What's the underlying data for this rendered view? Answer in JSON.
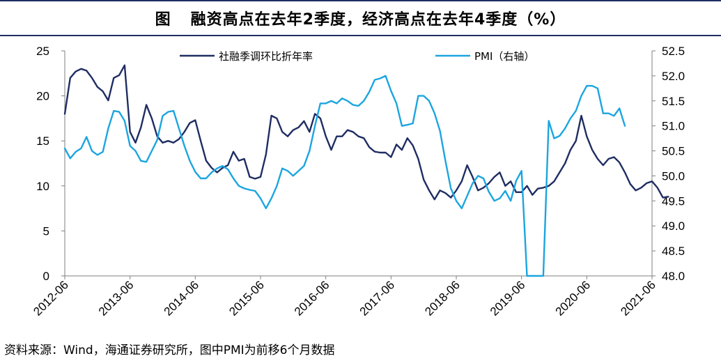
{
  "chart_data": {
    "type": "line",
    "title": "图 融资高点在去年2季度，经济高点在去年4季度（%）",
    "title_prefix": "图",
    "title_main": "融资高点在去年2季度，经济高点在去年4季度（%）",
    "source": "资料来源：Wind，海通证券研究所，图中PMI为前移6个月数据",
    "x_tick_labels": [
      "2012-06",
      "2013-06",
      "2014-06",
      "2015-06",
      "2016-06",
      "2017-06",
      "2018-06",
      "2019-06",
      "2020-06",
      "2021-06"
    ],
    "y_left_ticks": [
      "0",
      "5",
      "10",
      "15",
      "20",
      "25"
    ],
    "y_right_ticks": [
      "48.0",
      "48.5",
      "49.0",
      "49.5",
      "50.0",
      "50.5",
      "51.0",
      "51.5",
      "52.0",
      "52.5"
    ],
    "ylim_left": [
      0,
      25
    ],
    "ylim_right": [
      48.0,
      52.5
    ],
    "series": [
      {
        "name": "社融季调环比折年率",
        "axis": "left",
        "color": "#1f2d63",
        "start_month_index": 0,
        "values": [
          18,
          22,
          22.7,
          23,
          22.8,
          22,
          21,
          20.5,
          19.5,
          22,
          22.3,
          23.4,
          16,
          14.8,
          16.5,
          19,
          17.5,
          15.5,
          14.8,
          15,
          14.8,
          15.2,
          16,
          17,
          17.3,
          15,
          12.8,
          12,
          11.5,
          12,
          12.3,
          13.8,
          12.8,
          13,
          11,
          10.8,
          11,
          13.5,
          17.8,
          17.5,
          16,
          15.5,
          16.2,
          16.5,
          17.2,
          16,
          18,
          17.5,
          15.5,
          14,
          15.5,
          15.5,
          16.2,
          16,
          15.5,
          15.3,
          14.3,
          13.8,
          13.7,
          13.7,
          13.2,
          14.6,
          14,
          15.3,
          14.5,
          13,
          10.7,
          9.5,
          8.5,
          9.5,
          9.2,
          8.7,
          9.5,
          10.5,
          12.3,
          11,
          9.5,
          9.8,
          10.3,
          11,
          11.5,
          10,
          10.5,
          9.3,
          9.3,
          10,
          9,
          9.7,
          9.8,
          10,
          10.5,
          11.5,
          12.5,
          14,
          15,
          17.8,
          15.5,
          14,
          13,
          12.3,
          13,
          13.2,
          12.6,
          11.5,
          10.2,
          9.5,
          9.8,
          10.3,
          10.5,
          9.8,
          8.7,
          8.8
        ]
      },
      {
        "name": "PMI（右轴）",
        "axis": "right",
        "color": "#1ba5e0",
        "start_month_index": 0,
        "values": [
          50.55,
          50.35,
          50.48,
          50.55,
          50.78,
          50.5,
          50.42,
          50.48,
          50.95,
          51.3,
          51.28,
          51.1,
          50.6,
          50.5,
          50.3,
          50.28,
          50.5,
          50.72,
          51.2,
          51.28,
          51.3,
          50.95,
          50.6,
          50.3,
          50.08,
          49.95,
          49.95,
          50.07,
          50.15,
          50.2,
          50.13,
          49.95,
          49.8,
          49.75,
          49.72,
          49.7,
          49.55,
          49.35,
          49.55,
          49.8,
          50.15,
          50.1,
          50.0,
          50.1,
          50.2,
          50.5,
          51.0,
          51.45,
          51.45,
          51.5,
          51.45,
          51.55,
          51.5,
          51.42,
          51.4,
          51.5,
          51.68,
          51.92,
          51.95,
          52.0,
          51.7,
          51.45,
          51.0,
          51.02,
          51.05,
          51.6,
          51.6,
          51.5,
          51.25,
          50.9,
          50.3,
          49.75,
          49.5,
          49.35,
          49.6,
          49.85,
          50.0,
          49.95,
          49.68,
          49.5,
          49.55,
          49.7,
          49.5,
          49.9,
          50.1,
          48.0,
          48.0,
          48.0,
          48.0,
          51.1,
          50.75,
          50.8,
          50.95,
          51.15,
          51.3,
          51.6,
          51.8,
          51.8,
          51.75,
          51.25,
          51.25,
          51.2,
          51.35,
          51.0
        ]
      }
    ]
  }
}
